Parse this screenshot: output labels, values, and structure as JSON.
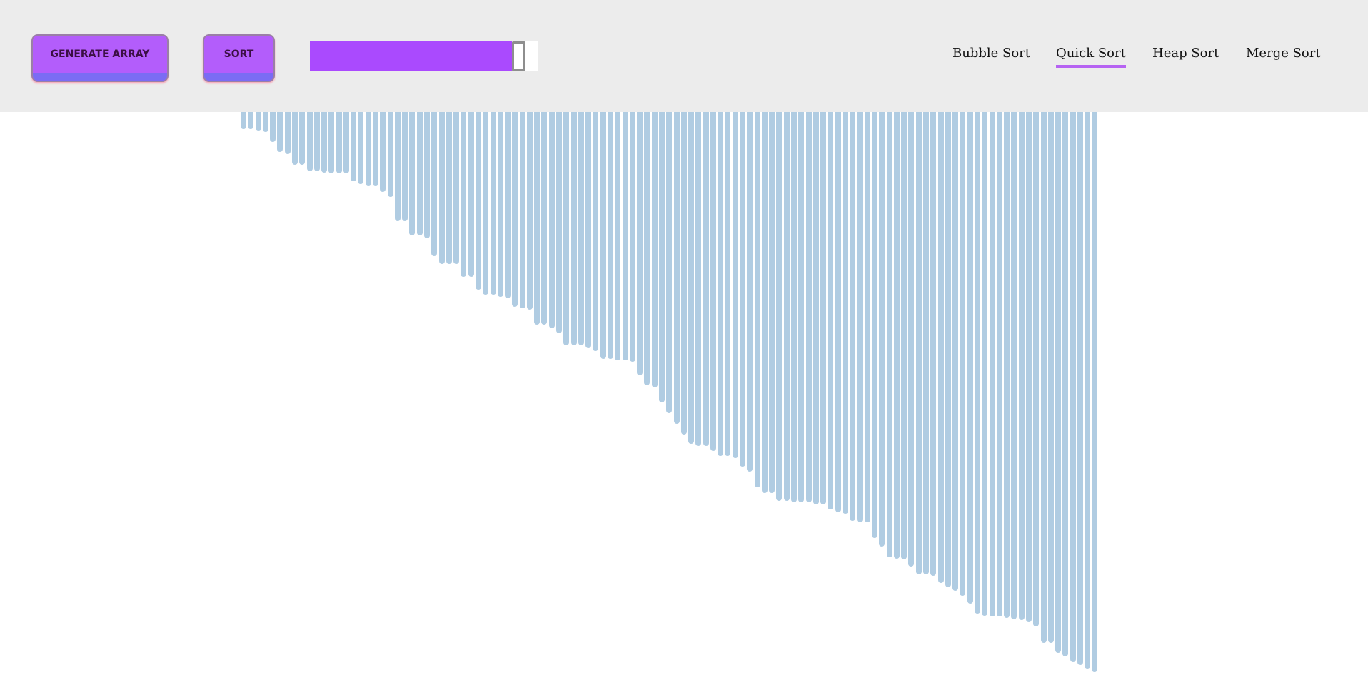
{
  "toolbar": {
    "generate_label": "GENERATE ARRAY",
    "sort_label": "SORT",
    "size_slider": {
      "value_fraction": 0.94
    }
  },
  "nav": {
    "items": [
      {
        "label": "Bubble Sort",
        "active": false
      },
      {
        "label": "Quick Sort",
        "active": true
      },
      {
        "label": "Heap Sort",
        "active": false
      },
      {
        "label": "Merge Sort",
        "active": false
      }
    ]
  },
  "colors": {
    "button": "#b35dfb",
    "button_base": "#7b6cf4",
    "slider_fill": "#aa4afe",
    "bar": "#b0cce2",
    "active_underline": "#b663f2",
    "toolbar_bg": "#ececec"
  },
  "array": {
    "values": [
      24,
      24,
      26,
      28,
      42,
      56,
      59,
      74,
      74,
      83,
      83,
      85,
      86,
      86,
      86,
      97,
      101,
      103,
      103,
      112,
      119,
      153,
      153,
      173,
      173,
      177,
      202,
      213,
      213,
      213,
      231,
      231,
      249,
      256,
      256,
      259,
      261,
      273,
      275,
      277,
      298,
      298,
      303,
      310,
      327,
      327,
      327,
      331,
      335,
      346,
      346,
      348,
      348,
      350,
      369,
      383,
      386,
      407,
      422,
      437,
      452,
      465,
      468,
      468,
      475,
      482,
      482,
      485,
      497,
      504,
      526,
      534,
      534,
      545,
      545,
      547,
      547,
      547,
      550,
      550,
      557,
      561,
      563,
      573,
      575,
      575,
      597,
      609,
      624,
      626,
      627,
      637,
      648,
      648,
      650,
      660,
      666,
      671,
      678,
      689,
      703,
      706,
      707,
      707,
      709,
      711,
      712,
      715,
      721,
      744,
      744,
      758,
      763,
      771,
      775,
      780,
      785
    ]
  }
}
